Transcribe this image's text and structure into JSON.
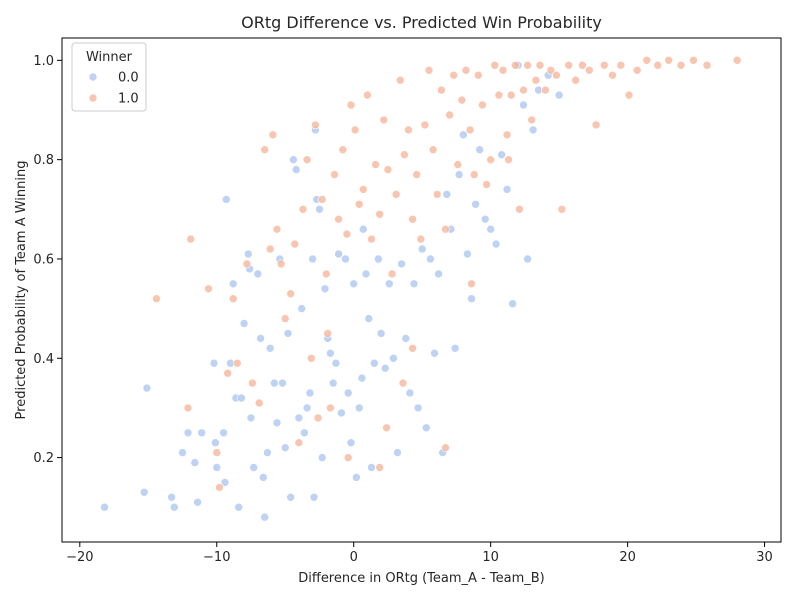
{
  "chart_data": {
    "type": "scatter",
    "title": "ORtg Difference vs. Predicted Win Probability",
    "xlabel": "Difference in ORtg (Team_A - Team_B)",
    "ylabel": "Predicted Probability of Team A Winning",
    "xlim": [
      -21.3,
      31.2
    ],
    "ylim": [
      0.03,
      1.045
    ],
    "xticks": [
      -20,
      -10,
      0,
      10,
      20,
      30
    ],
    "yticks": [
      0.2,
      0.4,
      0.6,
      0.8,
      1.0
    ],
    "xtick_labels": [
      "−20",
      "−10",
      "0",
      "10",
      "20",
      "30"
    ],
    "ytick_labels": [
      "0.2",
      "0.4",
      "0.6",
      "0.8",
      "1.0"
    ],
    "grid": false,
    "legend": {
      "title": "Winner",
      "placement": "top-left"
    },
    "series": [
      {
        "name": "0.0",
        "color": "#aec7f0",
        "points": [
          [
            -18.2,
            0.1
          ],
          [
            -15.3,
            0.13
          ],
          [
            -15.1,
            0.34
          ],
          [
            -13.3,
            0.12
          ],
          [
            -13.1,
            0.1
          ],
          [
            -12.5,
            0.21
          ],
          [
            -12.1,
            0.25
          ],
          [
            -11.6,
            0.19
          ],
          [
            -11.4,
            0.11
          ],
          [
            -11.1,
            0.25
          ],
          [
            -10.2,
            0.39
          ],
          [
            -10.1,
            0.23
          ],
          [
            -10.0,
            0.18
          ],
          [
            -9.5,
            0.25
          ],
          [
            -9.4,
            0.15
          ],
          [
            -9.3,
            0.72
          ],
          [
            -9.0,
            0.39
          ],
          [
            -8.8,
            0.55
          ],
          [
            -8.6,
            0.32
          ],
          [
            -8.4,
            0.1
          ],
          [
            -8.2,
            0.32
          ],
          [
            -8.0,
            0.47
          ],
          [
            -7.7,
            0.61
          ],
          [
            -7.6,
            0.58
          ],
          [
            -7.5,
            0.28
          ],
          [
            -7.3,
            0.18
          ],
          [
            -7.0,
            0.57
          ],
          [
            -6.8,
            0.44
          ],
          [
            -6.6,
            0.16
          ],
          [
            -6.5,
            0.08
          ],
          [
            -6.3,
            0.21
          ],
          [
            -6.1,
            0.42
          ],
          [
            -5.8,
            0.35
          ],
          [
            -5.6,
            0.27
          ],
          [
            -5.4,
            0.6
          ],
          [
            -5.2,
            0.35
          ],
          [
            -5.0,
            0.22
          ],
          [
            -4.8,
            0.45
          ],
          [
            -4.6,
            0.12
          ],
          [
            -4.4,
            0.8
          ],
          [
            -4.2,
            0.78
          ],
          [
            -4.0,
            0.28
          ],
          [
            -3.8,
            0.5
          ],
          [
            -3.6,
            0.25
          ],
          [
            -3.4,
            0.3
          ],
          [
            -3.2,
            0.33
          ],
          [
            -3.0,
            0.6
          ],
          [
            -2.9,
            0.12
          ],
          [
            -2.7,
            0.72
          ],
          [
            -2.5,
            0.7
          ],
          [
            -2.3,
            0.2
          ],
          [
            -2.1,
            0.54
          ],
          [
            -1.9,
            0.44
          ],
          [
            -1.7,
            0.41
          ],
          [
            -1.5,
            0.35
          ],
          [
            -1.3,
            0.39
          ],
          [
            -1.1,
            0.61
          ],
          [
            -0.9,
            0.29
          ],
          [
            -0.6,
            0.6
          ],
          [
            -0.4,
            0.33
          ],
          [
            -0.2,
            0.23
          ],
          [
            0.0,
            0.55
          ],
          [
            0.2,
            0.16
          ],
          [
            0.4,
            0.3
          ],
          [
            0.6,
            0.36
          ],
          [
            0.9,
            0.57
          ],
          [
            1.1,
            0.48
          ],
          [
            1.3,
            0.18
          ],
          [
            1.5,
            0.39
          ],
          [
            1.8,
            0.6
          ],
          [
            2.0,
            0.45
          ],
          [
            2.3,
            0.38
          ],
          [
            2.6,
            0.55
          ],
          [
            2.9,
            0.4
          ],
          [
            3.2,
            0.21
          ],
          [
            3.5,
            0.59
          ],
          [
            3.8,
            0.44
          ],
          [
            4.1,
            0.33
          ],
          [
            4.4,
            0.55
          ],
          [
            4.7,
            0.3
          ],
          [
            5.0,
            0.62
          ],
          [
            5.3,
            0.26
          ],
          [
            5.6,
            0.6
          ],
          [
            5.9,
            0.41
          ],
          [
            6.2,
            0.57
          ],
          [
            6.5,
            0.21
          ],
          [
            6.8,
            0.73
          ],
          [
            7.1,
            0.66
          ],
          [
            7.4,
            0.42
          ],
          [
            7.7,
            0.77
          ],
          [
            8.0,
            0.85
          ],
          [
            8.3,
            0.61
          ],
          [
            8.6,
            0.52
          ],
          [
            8.9,
            0.71
          ],
          [
            9.2,
            0.82
          ],
          [
            9.6,
            0.68
          ],
          [
            10.0,
            0.66
          ],
          [
            10.4,
            0.63
          ],
          [
            10.8,
            0.81
          ],
          [
            11.2,
            0.74
          ],
          [
            11.6,
            0.51
          ],
          [
            12.0,
            0.99
          ],
          [
            12.4,
            0.91
          ],
          [
            12.7,
            0.6
          ],
          [
            13.1,
            0.86
          ],
          [
            13.5,
            0.94
          ],
          [
            14.2,
            0.97
          ],
          [
            15.0,
            0.93
          ],
          [
            -2.8,
            0.86
          ],
          [
            0.7,
            0.66
          ]
        ]
      },
      {
        "name": "1.0",
        "color": "#f6b69c",
        "points": [
          [
            -14.4,
            0.52
          ],
          [
            -12.1,
            0.3
          ],
          [
            -11.9,
            0.64
          ],
          [
            -10.6,
            0.54
          ],
          [
            -10.0,
            0.21
          ],
          [
            -9.8,
            0.14
          ],
          [
            -9.2,
            0.37
          ],
          [
            -8.8,
            0.52
          ],
          [
            -8.5,
            0.39
          ],
          [
            -7.8,
            0.59
          ],
          [
            -7.4,
            0.35
          ],
          [
            -6.9,
            0.31
          ],
          [
            -6.5,
            0.82
          ],
          [
            -6.1,
            0.62
          ],
          [
            -5.9,
            0.85
          ],
          [
            -5.6,
            0.66
          ],
          [
            -5.3,
            0.59
          ],
          [
            -5.0,
            0.48
          ],
          [
            -4.6,
            0.53
          ],
          [
            -4.3,
            0.63
          ],
          [
            -4.0,
            0.23
          ],
          [
            -3.7,
            0.7
          ],
          [
            -3.4,
            0.8
          ],
          [
            -3.1,
            0.4
          ],
          [
            -2.8,
            0.87
          ],
          [
            -2.6,
            0.28
          ],
          [
            -2.3,
            0.72
          ],
          [
            -2.0,
            0.57
          ],
          [
            -1.7,
            0.3
          ],
          [
            -1.4,
            0.77
          ],
          [
            -1.1,
            0.68
          ],
          [
            -0.8,
            0.82
          ],
          [
            -0.5,
            0.65
          ],
          [
            -0.2,
            0.91
          ],
          [
            0.1,
            0.86
          ],
          [
            0.4,
            0.71
          ],
          [
            0.7,
            0.74
          ],
          [
            1.0,
            0.93
          ],
          [
            1.3,
            0.64
          ],
          [
            1.6,
            0.79
          ],
          [
            1.9,
            0.69
          ],
          [
            2.2,
            0.88
          ],
          [
            2.5,
            0.78
          ],
          [
            2.8,
            0.57
          ],
          [
            3.1,
            0.73
          ],
          [
            3.4,
            0.96
          ],
          [
            3.7,
            0.81
          ],
          [
            4.0,
            0.86
          ],
          [
            4.3,
            0.68
          ],
          [
            4.6,
            0.77
          ],
          [
            4.9,
            0.64
          ],
          [
            5.2,
            0.87
          ],
          [
            5.5,
            0.98
          ],
          [
            5.8,
            0.82
          ],
          [
            6.1,
            0.73
          ],
          [
            6.4,
            0.94
          ],
          [
            6.7,
            0.66
          ],
          [
            7.0,
            0.89
          ],
          [
            7.3,
            0.97
          ],
          [
            7.6,
            0.79
          ],
          [
            7.9,
            0.92
          ],
          [
            8.2,
            0.98
          ],
          [
            8.5,
            0.86
          ],
          [
            8.8,
            0.77
          ],
          [
            9.1,
            0.97
          ],
          [
            9.4,
            0.91
          ],
          [
            9.7,
            0.75
          ],
          [
            10.0,
            0.8
          ],
          [
            10.3,
            0.99
          ],
          [
            10.6,
            0.93
          ],
          [
            10.9,
            0.98
          ],
          [
            11.2,
            0.85
          ],
          [
            11.5,
            0.93
          ],
          [
            11.8,
            0.99
          ],
          [
            12.1,
            0.7
          ],
          [
            12.4,
            0.94
          ],
          [
            12.7,
            0.99
          ],
          [
            13.0,
            0.88
          ],
          [
            13.3,
            0.96
          ],
          [
            13.6,
            0.99
          ],
          [
            14.0,
            0.94
          ],
          [
            14.4,
            0.98
          ],
          [
            14.8,
            0.97
          ],
          [
            15.2,
            0.7
          ],
          [
            15.7,
            0.99
          ],
          [
            16.2,
            0.96
          ],
          [
            16.7,
            0.99
          ],
          [
            17.2,
            0.98
          ],
          [
            17.7,
            0.87
          ],
          [
            18.3,
            0.99
          ],
          [
            18.9,
            0.97
          ],
          [
            19.5,
            0.99
          ],
          [
            20.1,
            0.93
          ],
          [
            20.7,
            0.98
          ],
          [
            21.4,
            1.0
          ],
          [
            22.2,
            0.99
          ],
          [
            23.0,
            1.0
          ],
          [
            23.9,
            0.99
          ],
          [
            24.8,
            1.0
          ],
          [
            25.8,
            0.99
          ],
          [
            28.0,
            1.0
          ],
          [
            2.4,
            0.26
          ],
          [
            6.7,
            0.22
          ],
          [
            1.9,
            0.18
          ],
          [
            -0.4,
            0.2
          ],
          [
            4.3,
            0.42
          ],
          [
            8.6,
            0.55
          ],
          [
            11.3,
            0.8
          ],
          [
            3.6,
            0.35
          ],
          [
            -1.9,
            0.45
          ]
        ]
      }
    ]
  }
}
